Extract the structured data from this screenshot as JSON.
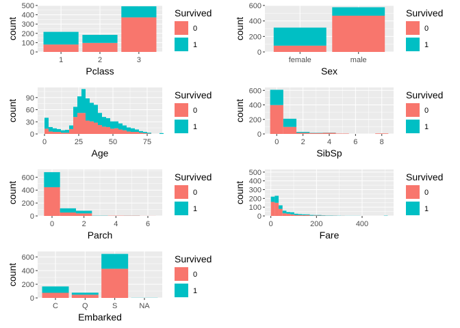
{
  "colors": {
    "class_0": "#F8766D",
    "class_1": "#00BFC4",
    "panel": "#EBEBEB",
    "grid": "#FFFFFF"
  },
  "chart_data": [
    {
      "type": "bar",
      "xlabel": "Pclass",
      "ylabel": "count",
      "categories": [
        "1",
        "2",
        "3"
      ],
      "series": [
        {
          "name": "0",
          "values": [
            80,
            97,
            372
          ]
        },
        {
          "name": "1",
          "values": [
            136,
            87,
            119
          ]
        }
      ],
      "ylim": [
        0,
        500
      ],
      "yticks": [
        0,
        100,
        200,
        300,
        400,
        500
      ],
      "legend": {
        "title": "Survived",
        "entries": [
          "0",
          "1"
        ]
      },
      "grid": true
    },
    {
      "type": "bar",
      "xlabel": "Sex",
      "ylabel": "count",
      "categories": [
        "female",
        "male"
      ],
      "series": [
        {
          "name": "0",
          "values": [
            81,
            468
          ]
        },
        {
          "name": "1",
          "values": [
            233,
            109
          ]
        }
      ],
      "ylim": [
        0,
        600
      ],
      "yticks": [
        0,
        200,
        400,
        600
      ],
      "legend": {
        "title": "Survived",
        "entries": [
          "0",
          "1"
        ]
      },
      "grid": true
    },
    {
      "type": "histogram",
      "xlabel": "Age",
      "ylabel": "count",
      "bin_start": 0,
      "bin_width": 3,
      "bins": 29,
      "series": [
        {
          "name": "0",
          "values": [
            13,
            6,
            5,
            5,
            3,
            3,
            12,
            42,
            52,
            52,
            33,
            31,
            28,
            22,
            18,
            17,
            13,
            14,
            11,
            9,
            6,
            5,
            5,
            3,
            2,
            1,
            0,
            0,
            0
          ]
        },
        {
          "name": "1",
          "values": [
            27,
            11,
            9,
            7,
            6,
            7,
            9,
            25,
            41,
            59,
            55,
            46,
            44,
            30,
            24,
            22,
            18,
            17,
            15,
            12,
            10,
            9,
            6,
            4,
            3,
            2,
            0,
            0,
            2
          ]
        }
      ],
      "xlim": [
        -5,
        86
      ],
      "xticks": [
        0,
        25,
        50,
        75
      ],
      "ylim": [
        0,
        115
      ],
      "yticks": [
        0,
        30,
        60,
        90
      ],
      "legend": {
        "title": "Survived",
        "entries": [
          "0",
          "1"
        ]
      },
      "grid": true
    },
    {
      "type": "histogram",
      "xlabel": "SibSp",
      "ylabel": "count",
      "bin_start": -0.5,
      "bin_width": 1,
      "bins": 9,
      "series": [
        {
          "name": "0",
          "values": [
            398,
            97,
            15,
            12,
            15,
            5,
            0,
            0,
            7
          ]
        },
        {
          "name": "1",
          "values": [
            210,
            112,
            13,
            4,
            3,
            0,
            0,
            0,
            0
          ]
        }
      ],
      "xlim": [
        -0.9,
        8.9
      ],
      "xticks": [
        0,
        2,
        4,
        6,
        8
      ],
      "ylim": [
        0,
        640
      ],
      "yticks": [
        0,
        200,
        400,
        600
      ],
      "legend": {
        "title": "Survived",
        "entries": [
          "0",
          "1"
        ]
      },
      "grid": true
    },
    {
      "type": "histogram",
      "xlabel": "Parch",
      "ylabel": "count",
      "bin_start": -0.5,
      "bin_width": 1,
      "bins": 7,
      "series": [
        {
          "name": "0",
          "values": [
            445,
            53,
            40,
            2,
            4,
            4,
            1
          ]
        },
        {
          "name": "1",
          "values": [
            233,
            65,
            40,
            3,
            0,
            1,
            0
          ]
        }
      ],
      "xlim": [
        -0.9,
        6.9
      ],
      "xticks": [
        0,
        2,
        4,
        6
      ],
      "ylim": [
        0,
        720
      ],
      "yticks": [
        0,
        200,
        400,
        600
      ],
      "legend": {
        "title": "Survived",
        "entries": [
          "0",
          "1"
        ]
      },
      "grid": true
    },
    {
      "type": "histogram",
      "xlabel": "Fare",
      "ylabel": "count",
      "bin_start": 0,
      "bin_width": 17.08,
      "bins": 30,
      "series": [
        {
          "name": "0",
          "values": [
            160,
            150,
            80,
            30,
            25,
            17,
            10,
            10,
            8,
            10,
            3,
            5,
            4,
            3,
            2,
            2,
            2,
            0,
            1,
            0,
            0,
            0,
            0,
            0,
            0,
            0,
            0,
            0,
            0,
            0
          ]
        },
        {
          "name": "1",
          "values": [
            60,
            80,
            41,
            30,
            20,
            25,
            15,
            11,
            10,
            8,
            8,
            5,
            6,
            4,
            3,
            3,
            2,
            2,
            1,
            1,
            1,
            1,
            1,
            0,
            0,
            0,
            0,
            0,
            0,
            3
          ]
        }
      ],
      "xlim": [
        -26,
        538
      ],
      "xticks": [
        0,
        200,
        400
      ],
      "ylim": [
        0,
        530
      ],
      "yticks": [
        0,
        100,
        200,
        300,
        400,
        500
      ],
      "legend": {
        "title": "Survived",
        "entries": [
          "0",
          "1"
        ]
      },
      "grid": true
    },
    {
      "type": "bar",
      "xlabel": "Embarked",
      "ylabel": "count",
      "categories": [
        "C",
        "Q",
        "S",
        "NA"
      ],
      "series": [
        {
          "name": "0",
          "values": [
            75,
            47,
            427,
            0
          ]
        },
        {
          "name": "1",
          "values": [
            93,
            30,
            217,
            2
          ]
        }
      ],
      "ylim": [
        0,
        680
      ],
      "yticks": [
        0,
        200,
        400,
        600
      ],
      "legend": {
        "title": "Survived",
        "entries": [
          "0",
          "1"
        ]
      },
      "grid": true
    }
  ]
}
